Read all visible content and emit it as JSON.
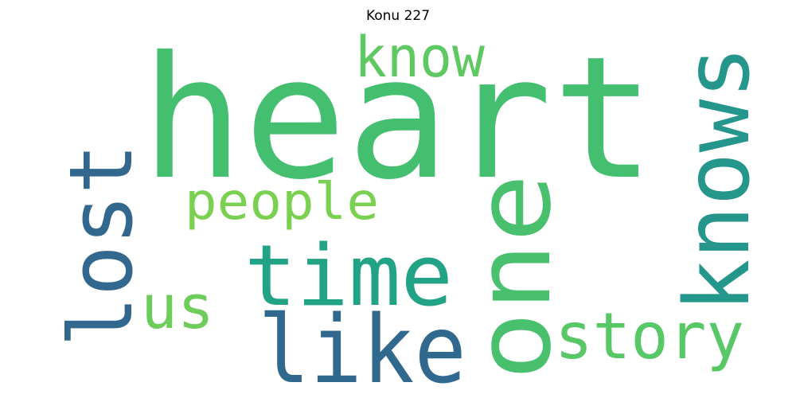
{
  "title": "Konu 227",
  "words": [
    {
      "text": "heart",
      "color": "#44bf70"
    },
    {
      "text": "know",
      "color": "#5ec962"
    },
    {
      "text": "knows",
      "color": "#25968b"
    },
    {
      "text": "lost",
      "color": "#32688e"
    },
    {
      "text": "one",
      "color": "#48c06e"
    },
    {
      "text": "people",
      "color": "#7ad151"
    },
    {
      "text": "time",
      "color": "#22a385"
    },
    {
      "text": "us",
      "color": "#6ccd5a"
    },
    {
      "text": "like",
      "color": "#31688e"
    },
    {
      "text": "story",
      "color": "#58c765"
    }
  ]
}
